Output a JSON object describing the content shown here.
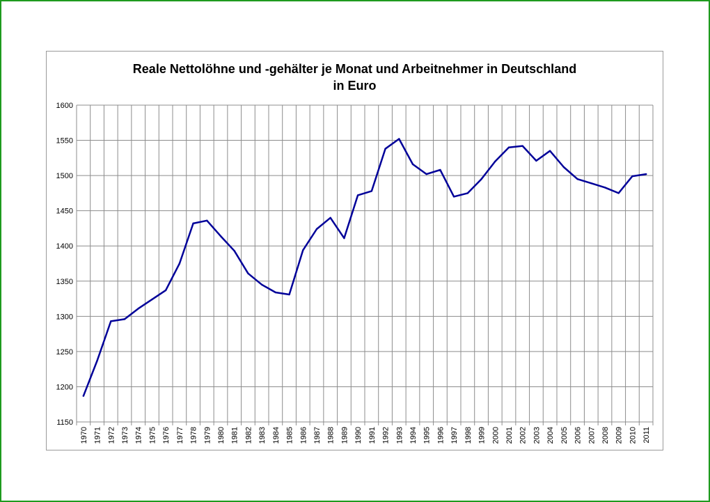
{
  "chart_data": {
    "type": "line",
    "title_line1": "Reale Nettolöhne und -gehälter je Monat und Arbeitnehmer in Deutschland",
    "title_line2": "in Euro",
    "xlabel": "",
    "ylabel": "",
    "ylim": [
      1150,
      1600
    ],
    "yticks": [
      1150,
      1200,
      1250,
      1300,
      1350,
      1400,
      1450,
      1500,
      1550,
      1600
    ],
    "grid": true,
    "line_color": "#000099",
    "categories": [
      "1970",
      "1971",
      "1972",
      "1973",
      "1974",
      "1975",
      "1976",
      "1977",
      "1978",
      "1979",
      "1980",
      "1981",
      "1982",
      "1983",
      "1984",
      "1985",
      "1986",
      "1987",
      "1988",
      "1989",
      "1990",
      "1991",
      "1992",
      "1993",
      "1994",
      "1995",
      "1996",
      "1997",
      "1998",
      "1999",
      "2000",
      "2001",
      "2002",
      "2003",
      "2004",
      "2005",
      "2006",
      "2007",
      "2008",
      "2009",
      "2010",
      "2011"
    ],
    "values": [
      1187,
      1237,
      1293,
      1296,
      1311,
      1324,
      1337,
      1375,
      1432,
      1436,
      1414,
      1393,
      1361,
      1345,
      1334,
      1331,
      1394,
      1424,
      1440,
      1411,
      1472,
      1478,
      1538,
      1552,
      1516,
      1502,
      1508,
      1470,
      1475,
      1495,
      1520,
      1540,
      1542,
      1521,
      1535,
      1512,
      1495,
      1489,
      1483,
      1475,
      1499,
      1502
    ]
  }
}
